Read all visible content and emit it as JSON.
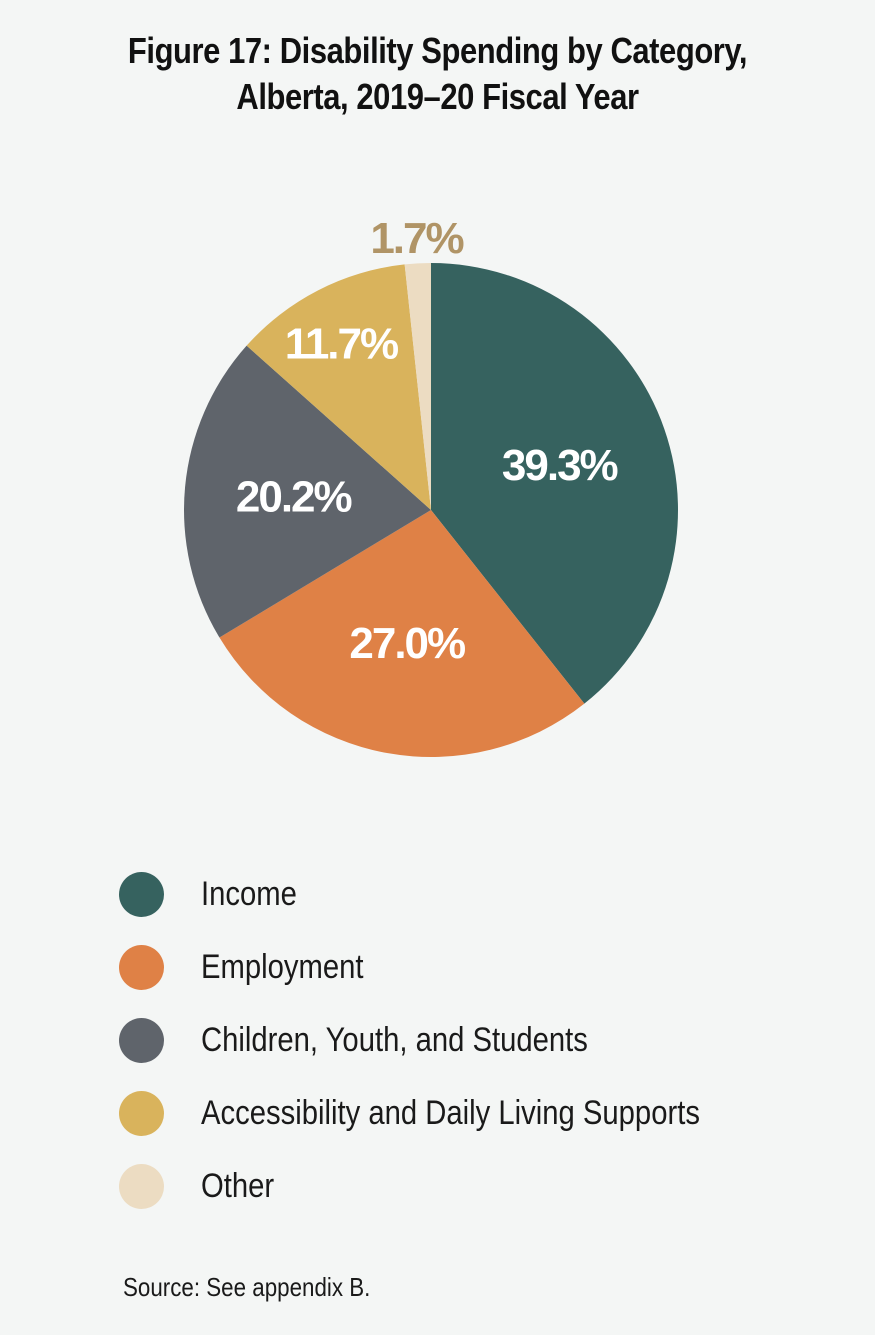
{
  "title_line1": "Figure 17: Disability Spending by Category,",
  "title_line2": "Alberta, 2019–20 Fiscal Year",
  "source": "Source: See appendix B.",
  "chart_data": {
    "type": "pie",
    "title": "Figure 17: Disability Spending by Category, Alberta, 2019–20 Fiscal Year",
    "start": "12 o'clock, clockwise",
    "legend_position": "bottom",
    "slices": [
      {
        "name": "Income",
        "value": 39.3,
        "label": "39.3%",
        "color": "#36625f",
        "label_color": "#ffffff"
      },
      {
        "name": "Employment",
        "value": 27.0,
        "label": "27.0%",
        "color": "#df8146",
        "label_color": "#ffffff"
      },
      {
        "name": "Children, Youth, and Students",
        "value": 20.2,
        "label": "20.2%",
        "color": "#5f646b",
        "label_color": "#ffffff"
      },
      {
        "name": "Accessibility and Daily Living Supports",
        "value": 11.7,
        "label": "11.7%",
        "color": "#d9b35c",
        "label_color": "#ffffff"
      },
      {
        "name": "Other",
        "value": 1.7,
        "label": "1.7%",
        "color": "#ecdcc2",
        "label_color": "#b09466"
      }
    ]
  }
}
